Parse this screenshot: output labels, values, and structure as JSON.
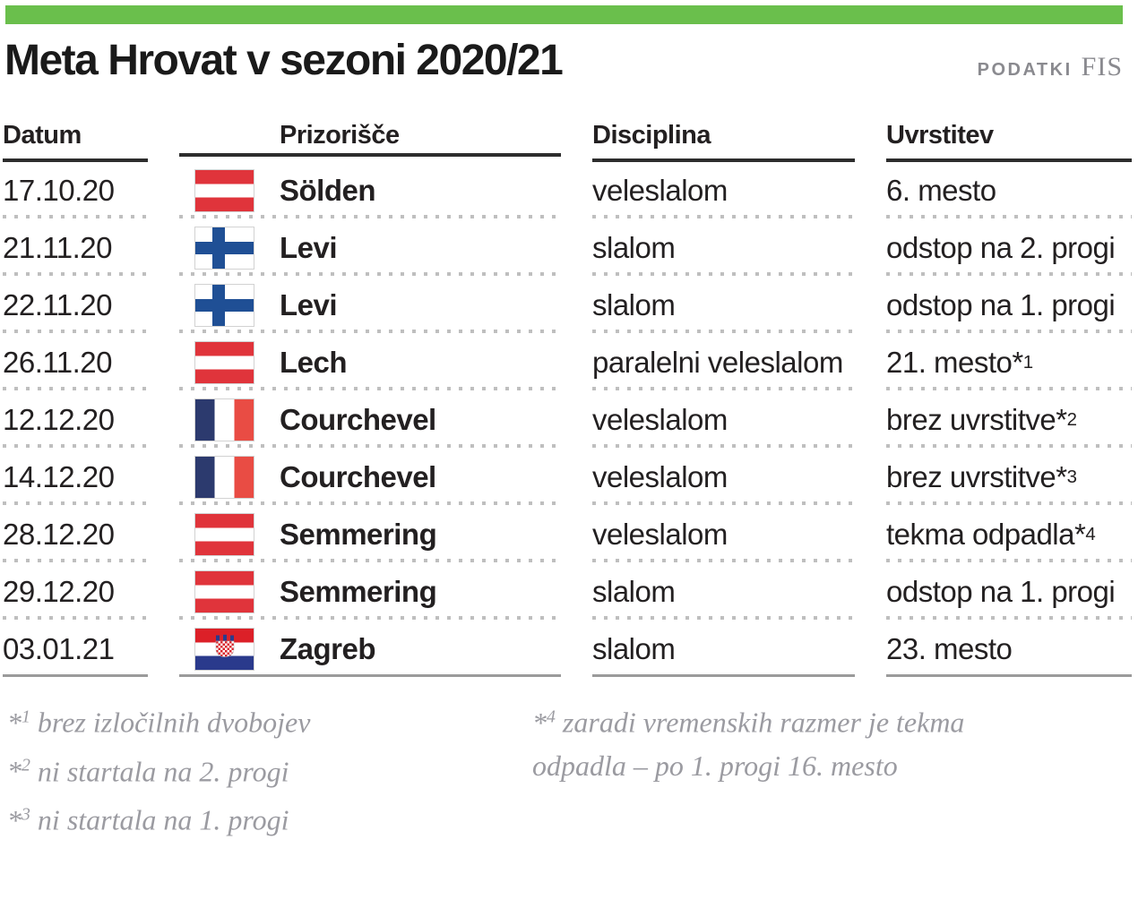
{
  "colors": {
    "accent_green": "#6abf4c",
    "text_dark": "#232021",
    "rule_dark": "#2d2d2d",
    "rule_gray": "#9b9b9b",
    "dot_gray": "#bfbfbf",
    "source_gray": "#8a8a8f",
    "footnote_gray": "#9b9ba1",
    "austria_red": "#e0343b",
    "finland_blue": "#1f4f95",
    "france_blue": "#2c3a6e",
    "france_red": "#e94c44",
    "croatia_red": "#dc2028",
    "croatia_blue": "#2a3a8c"
  },
  "header": {
    "title": "Meta Hrovat v sezoni 2020/21",
    "source_label": "PODATKI",
    "source_name": "FIS"
  },
  "table": {
    "columns": [
      "Datum",
      "Prizorišče",
      "Disciplina",
      "Uvrstitev"
    ],
    "rows": [
      {
        "date": "17.10.20",
        "flag": "austria",
        "venue": "Sölden",
        "discipline": "veleslalom",
        "result": "6. mesto",
        "note": ""
      },
      {
        "date": "21.11.20",
        "flag": "finland",
        "venue": "Levi",
        "discipline": "slalom",
        "result": "odstop na 2. progi",
        "note": ""
      },
      {
        "date": "22.11.20",
        "flag": "finland",
        "venue": "Levi",
        "discipline": "slalom",
        "result": "odstop na 1. progi",
        "note": ""
      },
      {
        "date": "26.11.20",
        "flag": "austria",
        "venue": "Lech",
        "discipline": "paralelni veleslalom",
        "result": "21. mesto",
        "note": "1"
      },
      {
        "date": "12.12.20",
        "flag": "france",
        "venue": "Courchevel",
        "discipline": "veleslalom",
        "result": "brez uvrstitve",
        "note": "2"
      },
      {
        "date": "14.12.20",
        "flag": "france",
        "venue": "Courchevel",
        "discipline": "veleslalom",
        "result": "brez uvrstitve",
        "note": "3"
      },
      {
        "date": "28.12.20",
        "flag": "austria",
        "venue": "Semmering",
        "discipline": "veleslalom",
        "result": "tekma odpadla",
        "note": "4"
      },
      {
        "date": "29.12.20",
        "flag": "austria",
        "venue": "Semmering",
        "discipline": "slalom",
        "result": "odstop na 1. progi",
        "note": ""
      },
      {
        "date": "03.01.21",
        "flag": "croatia",
        "venue": "Zagreb",
        "discipline": "slalom",
        "result": "23. mesto",
        "note": ""
      }
    ]
  },
  "footnotes": {
    "left": [
      {
        "mark": "1",
        "lines": [
          "brez izločilnih dvobojev"
        ]
      },
      {
        "mark": "2",
        "lines": [
          "ni startala na 2. progi"
        ]
      },
      {
        "mark": "3",
        "lines": [
          "ni startala na 1. progi"
        ]
      }
    ],
    "right": [
      {
        "mark": "4",
        "lines": [
          "zaradi vremenskih razmer je tekma",
          "odpadla – po 1. progi 16. mesto"
        ]
      }
    ]
  },
  "chart_data": {
    "type": "table",
    "title": "Meta Hrovat v sezoni 2020/21",
    "source": "PODATKI FIS",
    "columns": [
      "Datum",
      "Prizorišče",
      "Disciplina",
      "Uvrstitev"
    ],
    "rows": [
      [
        "17.10.20",
        "Sölden (AUT)",
        "veleslalom",
        "6. mesto"
      ],
      [
        "21.11.20",
        "Levi (FIN)",
        "slalom",
        "odstop na 2. progi"
      ],
      [
        "22.11.20",
        "Levi (FIN)",
        "slalom",
        "odstop na 1. progi"
      ],
      [
        "26.11.20",
        "Lech (AUT)",
        "paralelni veleslalom",
        "21. mesto*1"
      ],
      [
        "12.12.20",
        "Courchevel (FRA)",
        "veleslalom",
        "brez uvrstitve*2"
      ],
      [
        "14.12.20",
        "Courchevel (FRA)",
        "veleslalom",
        "brez uvrstitve*3"
      ],
      [
        "28.12.20",
        "Semmering (AUT)",
        "veleslalom",
        "tekma odpadla*4"
      ],
      [
        "29.12.20",
        "Semmering (AUT)",
        "slalom",
        "odstop na 1. progi"
      ],
      [
        "03.01.21",
        "Zagreb (CRO)",
        "slalom",
        "23. mesto"
      ]
    ],
    "footnotes": [
      "*1 brez izločilnih dvobojev",
      "*2 ni startala na 2. progi",
      "*3 ni startala na 1. progi",
      "*4 zaradi vremenskih razmer je tekma odpadla – po 1. progi 16. mesto"
    ]
  }
}
